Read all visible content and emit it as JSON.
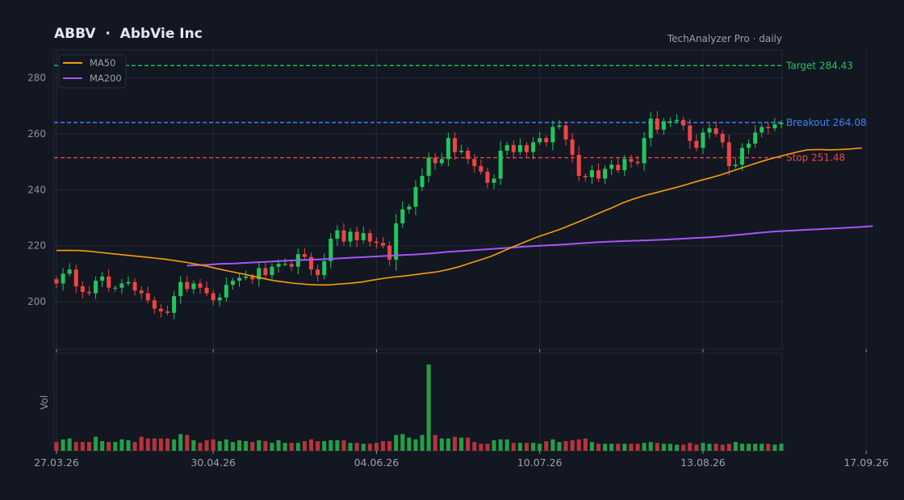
{
  "header": {
    "title": "ABBV  ·  AbbVie Inc",
    "brand": "TechAnalyzer Pro · daily"
  },
  "colors": {
    "background": "#131722",
    "grid": "#232838",
    "up": "#22c55e",
    "down": "#ef4444",
    "ma50": "#f59e0b",
    "ma200": "#a855f7",
    "target": "#22c55e",
    "breakout": "#3b82f6",
    "stop": "#ef4444",
    "vol_up": "#22a046",
    "vol_down": "#b8333c"
  },
  "chart_data": {
    "type": "candlestick",
    "ylim": [
      183,
      290
    ],
    "yticks": [
      200,
      220,
      240,
      260,
      280
    ],
    "xtick_labels": [
      "27.03.26",
      "30.04.26",
      "04.06.26",
      "10.07.26",
      "13.08.26",
      "17.09.26"
    ],
    "xtick_index": [
      0,
      24,
      49,
      74,
      99,
      124
    ],
    "volume_label": "Vol",
    "legend": {
      "position": "top-left",
      "entries": [
        "MA50",
        "MA200"
      ]
    },
    "levels": [
      {
        "name": "Target",
        "label": "Target 284.43",
        "value": 284.43,
        "color": "#22c55e"
      },
      {
        "name": "Breakout",
        "label": "Breakout 264.08",
        "value": 264.08,
        "color": "#3b82f6"
      },
      {
        "name": "Stop",
        "label": "Stop 251.48",
        "value": 251.48,
        "color": "#ef4444"
      }
    ],
    "close": [
      206.5,
      210.0,
      211.5,
      205.5,
      203.5,
      203.0,
      207.5,
      209.0,
      205.0,
      205.0,
      206.5,
      207.0,
      204.0,
      203.0,
      200.5,
      197.5,
      196.5,
      196.0,
      202.0,
      207.0,
      204.5,
      206.5,
      205.0,
      203.0,
      200.5,
      201.5,
      206.0,
      207.5,
      208.5,
      209.0,
      208.0,
      212.0,
      209.5,
      212.5,
      213.5,
      213.5,
      212.5,
      217.0,
      216.0,
      211.5,
      209.5,
      214.5,
      222.5,
      225.5,
      221.5,
      225.0,
      222.0,
      224.5,
      221.5,
      221.0,
      220.0,
      215.0,
      228.0,
      233.0,
      234.0,
      241.0,
      245.0,
      251.5,
      249.5,
      251.0,
      258.5,
      253.5,
      254.0,
      251.0,
      248.5,
      246.5,
      242.5,
      244.0,
      254.0,
      256.0,
      253.5,
      256.0,
      253.5,
      257.0,
      258.5,
      257.0,
      262.5,
      263.0,
      258.0,
      252.5,
      245.0,
      244.5,
      247.0,
      244.0,
      247.5,
      249.0,
      247.0,
      251.0,
      250.0,
      249.5,
      258.5,
      265.5,
      261.5,
      264.5,
      264.5,
      265.0,
      263.0,
      257.5,
      255.0,
      260.5,
      262.0,
      260.0,
      257.0,
      248.5,
      249.0,
      255.0,
      256.5,
      260.5,
      262.5,
      262.0,
      263.5,
      264.0
    ],
    "ma50": [
      218.3,
      218.3,
      218.3,
      218.0,
      217.6,
      217.2,
      216.8,
      216.4,
      216.0,
      215.6,
      215.2,
      214.6,
      214.0,
      213.3,
      212.5,
      211.6,
      210.8,
      210.0,
      209.2,
      208.3,
      207.5,
      207.0,
      206.5,
      206.2,
      206.0,
      206.0,
      206.3,
      206.6,
      207.0,
      207.7,
      208.3,
      208.8,
      209.2,
      209.7,
      210.2,
      210.7,
      211.5,
      212.5,
      213.8,
      215.0,
      216.3,
      218.0,
      219.7,
      221.3,
      222.9,
      224.2,
      225.5,
      227.0,
      228.6,
      230.2,
      231.9,
      233.5,
      235.3,
      236.7,
      237.9,
      238.9,
      239.9,
      240.9,
      242.0,
      243.2,
      244.2,
      245.3,
      246.6,
      247.9,
      249.2,
      250.4,
      251.5,
      252.5,
      253.5,
      254.3,
      254.4,
      254.3,
      254.4,
      254.6,
      255.0
    ],
    "ma50_start": 0,
    "ma50_step": 1.6667,
    "ma200": [
      212.9,
      213.1,
      213.5,
      213.7,
      214.0,
      214.3,
      214.6,
      214.9,
      215.1,
      215.4,
      215.7,
      216.0,
      216.3,
      216.6,
      216.9,
      217.3,
      217.8,
      218.2,
      218.6,
      219.0,
      219.4,
      219.8,
      220.1,
      220.4,
      220.8,
      221.2,
      221.5,
      221.7,
      221.9,
      222.1,
      222.4,
      222.7,
      223.0,
      223.5,
      224.0,
      224.6,
      225.1,
      225.4,
      225.7,
      226.0,
      226.3,
      226.6,
      227.0
    ],
    "ma200_start": 20,
    "ma200_step": 2.5,
    "volume": [
      1.0,
      1.3,
      1.4,
      1.0,
      1.0,
      1.0,
      1.6,
      1.1,
      1.0,
      1.0,
      1.3,
      1.2,
      1.0,
      1.6,
      1.4,
      1.4,
      1.4,
      1.4,
      1.3,
      1.9,
      1.8,
      1.2,
      0.9,
      1.2,
      1.3,
      1.1,
      1.3,
      1.0,
      1.2,
      1.1,
      1.0,
      1.2,
      1.1,
      0.9,
      1.2,
      0.9,
      0.9,
      0.9,
      1.1,
      1.3,
      1.1,
      1.1,
      1.2,
      1.2,
      1.2,
      0.9,
      0.9,
      0.8,
      0.8,
      0.9,
      1.1,
      1.1,
      1.8,
      1.9,
      1.5,
      1.3,
      1.8,
      9.8,
      1.8,
      1.4,
      1.4,
      1.6,
      1.5,
      1.5,
      1.0,
      0.8,
      0.8,
      1.2,
      1.3,
      1.3,
      0.9,
      0.9,
      0.9,
      0.9,
      0.8,
      1.1,
      1.3,
      1.0,
      1.1,
      1.2,
      1.3,
      1.4,
      1.0,
      0.8,
      0.8,
      0.8,
      0.8,
      0.8,
      0.8,
      0.8,
      0.9,
      1.0,
      0.9,
      0.8,
      0.8,
      0.7,
      0.7,
      0.9,
      0.7,
      0.9,
      0.8,
      0.8,
      0.7,
      0.8,
      1.0,
      0.8,
      0.8,
      0.8,
      0.8,
      0.8,
      0.7,
      0.8
    ]
  }
}
